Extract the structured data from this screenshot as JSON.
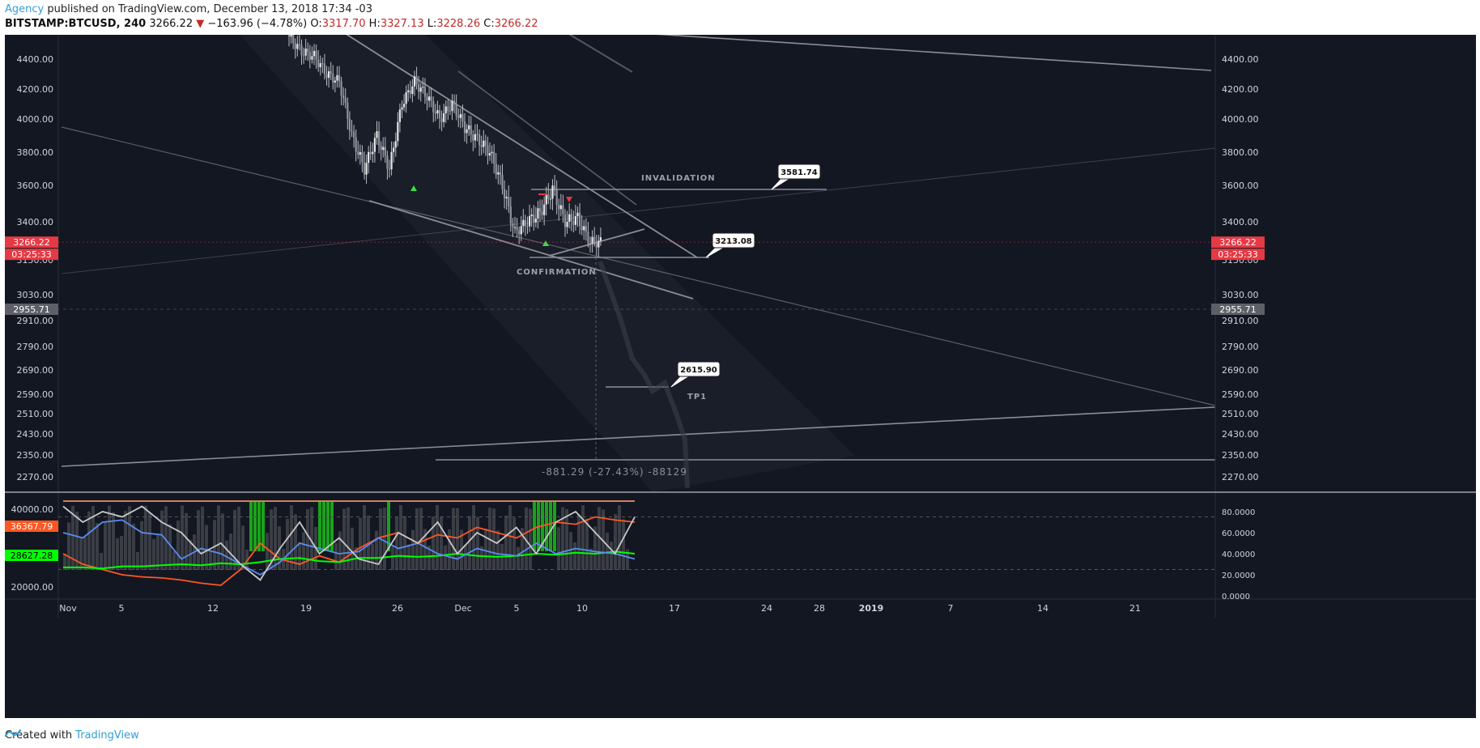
{
  "header": {
    "author": "Agency",
    "published_text": " published on TradingView.com, December 13, 2018 17:34 -03",
    "symbol_text": "BITSTAMP:BTCUSD, 240",
    "last_price": "3266.22",
    "change_arrow": "▼",
    "change_text": "−163.96 (−4.78%)",
    "open_label": "O:",
    "open_value": "3317.70",
    "high_label": "H:",
    "high_value": "3327.13",
    "low_label": "L:",
    "low_value": "3228.26",
    "close_label": "C:",
    "close_value": "3266.22"
  },
  "footer": {
    "created_with": "Created with",
    "brand": "TradingView"
  },
  "colors": {
    "background": "#131722",
    "candle": "#b8bcc4",
    "line": "#8a8d94",
    "current_price": "#e53944",
    "orange": "#ff5722",
    "green": "#00ff00",
    "blue": "#5b8cf0",
    "white_line": "#c8c8c8",
    "green_bar": "#1aa31a",
    "gray_bar": "#3a3d44"
  },
  "chart_data": [
    {
      "type": "candlestick",
      "title": "BITSTAMP:BTCUSD, 240",
      "y_axis_ticks": [
        4400,
        4200,
        4000,
        3800,
        3600,
        3400,
        3150,
        3030,
        2910,
        2790,
        2690,
        2590,
        2510,
        2430,
        2350,
        2270
      ],
      "y_tick_labels": [
        "4400.00",
        "4200.00",
        "4000.00",
        "3800.00",
        "3600.00",
        "3400.00",
        "3150.00",
        "3030.00",
        "2910.00",
        "2790.00",
        "2690.00",
        "2590.00",
        "2510.00",
        "2430.00",
        "2350.00",
        "2270.00"
      ],
      "x_tick_labels": [
        "Nov",
        "5",
        "12",
        "19",
        "26",
        "Dec",
        "5",
        "10",
        "17",
        "24",
        "28",
        "2019",
        "7",
        "14",
        "21"
      ],
      "current_price_label": "3266.22",
      "countdown_label": "03:25:33",
      "crosshair_price_label": "2955.71",
      "price_path": [
        {
          "date": "Nov 19",
          "close": 4550
        },
        {
          "date": "Nov 20",
          "close": 4450
        },
        {
          "date": "Nov 21",
          "close": 4420
        },
        {
          "date": "Nov 22",
          "close": 4300
        },
        {
          "date": "Nov 23",
          "close": 4250
        },
        {
          "date": "Nov 24",
          "close": 3900
        },
        {
          "date": "Nov 25",
          "close": 3700
        },
        {
          "date": "Nov 26",
          "close": 3900
        },
        {
          "date": "Nov 27",
          "close": 3700
        },
        {
          "date": "Nov 28",
          "close": 4100
        },
        {
          "date": "Nov 29",
          "close": 4250
        },
        {
          "date": "Nov 30",
          "close": 4150
        },
        {
          "date": "Dec 1",
          "close": 4000
        },
        {
          "date": "Dec 2",
          "close": 4100
        },
        {
          "date": "Dec 3",
          "close": 3950
        },
        {
          "date": "Dec 4",
          "close": 3880
        },
        {
          "date": "Dec 5",
          "close": 3800
        },
        {
          "date": "Dec 6",
          "close": 3600
        },
        {
          "date": "Dec 7",
          "close": 3330
        },
        {
          "date": "Dec 8",
          "close": 3400
        },
        {
          "date": "Dec 9",
          "close": 3450
        },
        {
          "date": "Dec 10",
          "close": 3580
        },
        {
          "date": "Dec 11",
          "close": 3400
        },
        {
          "date": "Dec 12",
          "close": 3420
        },
        {
          "date": "Dec 13",
          "close": 3266.22
        }
      ],
      "annotations": [
        {
          "type": "level",
          "label": "INVALIDATION",
          "callout": "3581.74",
          "price": 3581.74
        },
        {
          "type": "level",
          "label": "CONFIRMATION",
          "callout": "3213.08",
          "price": 3213.08
        },
        {
          "type": "level",
          "label": "TP1",
          "callout": "2615.90",
          "price": 2615.9
        },
        {
          "type": "measure",
          "text": "-881.29 (-27.43%) -88129",
          "price": 2335
        }
      ]
    },
    {
      "type": "line",
      "title": "",
      "left_axis_ticks": [
        40000,
        20000
      ],
      "left_tick_labels": [
        "40000.00",
        "20000.00"
      ],
      "right_axis_ticks": [
        80,
        60,
        40,
        20,
        0
      ],
      "right_tick_labels": [
        "80.0000",
        "60.0000",
        "40.0000",
        "20.0000",
        "0.0000"
      ],
      "value_labels": [
        "36367.79",
        "28627.28"
      ],
      "series": [
        {
          "color": "#ff5722",
          "values": [
            40,
            30,
            25,
            20,
            18,
            17,
            15,
            12,
            10,
            25,
            50,
            35,
            30,
            38,
            32,
            45,
            55,
            60,
            50,
            58,
            55,
            65,
            60,
            55,
            65,
            70,
            68,
            75,
            72,
            70
          ]
        },
        {
          "color": "#00ff00",
          "values": [
            27,
            27,
            26,
            28,
            28,
            29,
            30,
            29,
            31,
            30,
            32,
            35,
            36,
            33,
            32,
            36,
            36,
            38,
            37,
            38,
            40,
            38,
            37,
            38,
            40,
            39,
            41,
            40,
            42,
            40
          ]
        },
        {
          "color": "#5b8cf0",
          "values": [
            60,
            55,
            70,
            72,
            60,
            58,
            35,
            45,
            40,
            30,
            20,
            32,
            50,
            45,
            40,
            42,
            55,
            45,
            50,
            40,
            35,
            45,
            40,
            38,
            50,
            40,
            45,
            42,
            40,
            35
          ]
        },
        {
          "color": "#c8c8c8",
          "values": [
            85,
            70,
            80,
            75,
            85,
            70,
            60,
            40,
            50,
            30,
            15,
            45,
            70,
            40,
            55,
            35,
            30,
            60,
            50,
            70,
            40,
            60,
            50,
            65,
            40,
            70,
            80,
            60,
            40,
            75
          ]
        }
      ]
    }
  ]
}
